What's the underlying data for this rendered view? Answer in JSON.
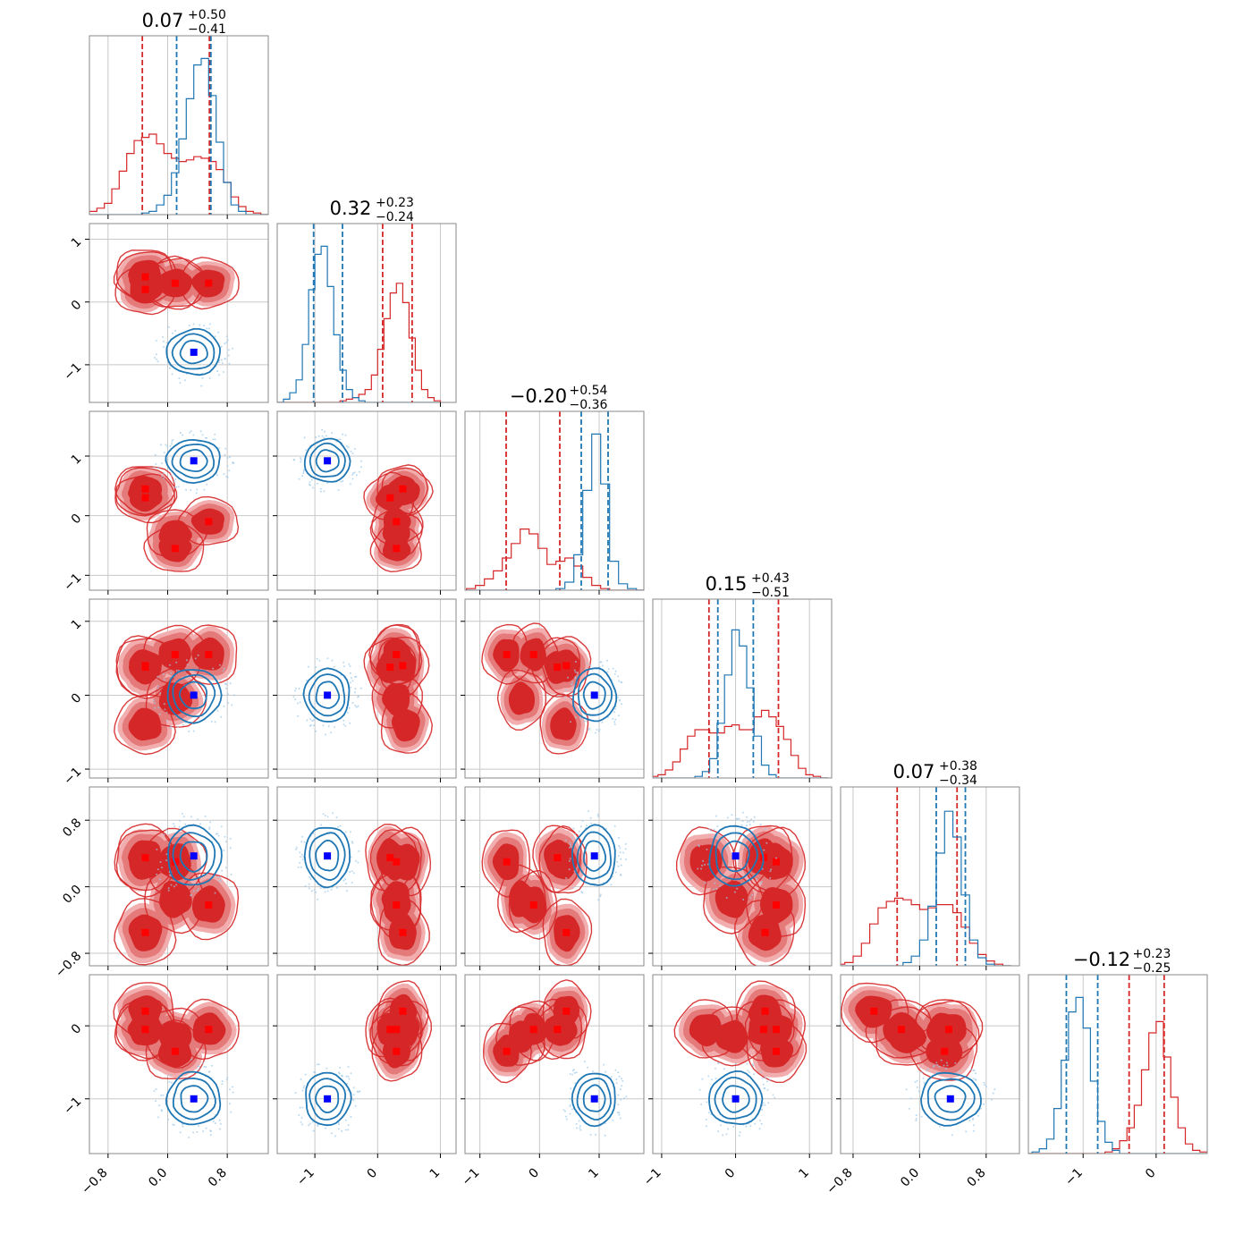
{
  "chart_data": {
    "type": "corner",
    "colors": {
      "red": "#d62728",
      "blue": "#1f77b4",
      "red_marker": "#ff0000",
      "blue_marker": "#0000ff",
      "grid": "#c8c8c8",
      "frame": "#888888"
    },
    "series": [
      {
        "name": "",
        "color": "#d62728",
        "marker": "square"
      },
      {
        "name": "",
        "color": "#1f77b4",
        "marker": "square"
      }
    ],
    "params": [
      {
        "title_value": "0.07",
        "title_plus": "+0.50",
        "title_minus": "−0.41",
        "range": [
          -1.05,
          1.35
        ],
        "ticks": [
          {
            "v": -0.8,
            "label": "−0.8"
          },
          {
            "v": 0.0,
            "label": "0.0"
          },
          {
            "v": 0.8,
            "label": "0.8"
          }
        ],
        "quantiles": {
          "red": [
            -0.34,
            0.56
          ],
          "blue": [
            0.12,
            0.58
          ]
        }
      },
      {
        "title_value": "0.32",
        "title_plus": "+0.23",
        "title_minus": "−0.24",
        "range": [
          -1.6,
          1.25
        ],
        "ticks": [
          {
            "v": -1,
            "label": "−1"
          },
          {
            "v": 0,
            "label": "0"
          },
          {
            "v": 1,
            "label": "1"
          }
        ],
        "quantiles": {
          "red": [
            0.08,
            0.55
          ],
          "blue": [
            -1.02,
            -0.56
          ]
        }
      },
      {
        "title_value": "−0.20",
        "title_plus": "+0.54",
        "title_minus": "−0.36",
        "range": [
          -1.25,
          1.75
        ],
        "ticks": [
          {
            "v": -1,
            "label": "−1"
          },
          {
            "v": 0,
            "label": "0"
          },
          {
            "v": 1,
            "label": "1"
          }
        ],
        "quantiles": {
          "red": [
            -0.56,
            0.34
          ],
          "blue": [
            0.7,
            1.15
          ]
        }
      },
      {
        "title_value": "0.15",
        "title_plus": "+0.43",
        "title_minus": "−0.51",
        "range": [
          -1.12,
          1.3
        ],
        "ticks": [
          {
            "v": -1,
            "label": "−1"
          },
          {
            "v": 0,
            "label": "0"
          },
          {
            "v": 1,
            "label": "1"
          }
        ],
        "quantiles": {
          "red": [
            -0.36,
            0.58
          ],
          "blue": [
            -0.24,
            0.24
          ]
        }
      },
      {
        "title_value": "0.07",
        "title_plus": "+0.38",
        "title_minus": "−0.34",
        "range": [
          -0.95,
          1.2
        ],
        "ticks": [
          {
            "v": -0.8,
            "label": "−0.8"
          },
          {
            "v": 0.0,
            "label": "0.0"
          },
          {
            "v": 0.8,
            "label": "0.8"
          }
        ],
        "quantiles": {
          "red": [
            -0.27,
            0.45
          ],
          "blue": [
            0.2,
            0.55
          ]
        }
      },
      {
        "title_value": "−0.12",
        "title_plus": "+0.23",
        "title_minus": "−0.25",
        "range": [
          -1.75,
          0.7
        ],
        "ticks": [
          {
            "v": -1,
            "label": "−1"
          },
          {
            "v": 0,
            "label": "0"
          }
        ],
        "quantiles": {
          "red": [
            -0.37,
            0.11
          ],
          "blue": [
            -1.23,
            -0.8
          ]
        }
      }
    ],
    "red_modes": [
      [
        -0.3,
        0.4,
        0.45,
        0.4,
        -0.55,
        0.2
      ],
      [
        -0.3,
        0.2,
        0.3,
        0.38,
        0.35,
        -0.05
      ],
      [
        0.1,
        0.3,
        -0.55,
        0.55,
        0.3,
        -0.35
      ],
      [
        0.55,
        0.3,
        -0.1,
        0.55,
        -0.22,
        -0.05
      ],
      [
        -0.3,
        0.45,
        0.4,
        -0.4,
        0.3,
        -0.05
      ],
      [
        0.1,
        0.3,
        -0.3,
        -0.05,
        -0.15,
        -0.15
      ]
    ],
    "blue_mode": [
      0.35,
      -0.8,
      0.92,
      0.0,
      0.37,
      -1.0
    ],
    "histograms": [
      {
        "bins": [
          -1.0,
          -0.9,
          -0.8,
          -0.7,
          -0.6,
          -0.5,
          -0.4,
          -0.3,
          -0.2,
          -0.1,
          0.0,
          0.1,
          0.2,
          0.3,
          0.4,
          0.5,
          0.6,
          0.7,
          0.8,
          0.9,
          1.0,
          1.1,
          1.2,
          1.3
        ],
        "red": [
          0.02,
          0.04,
          0.07,
          0.16,
          0.27,
          0.38,
          0.46,
          0.48,
          0.5,
          0.44,
          0.38,
          0.35,
          0.33,
          0.34,
          0.36,
          0.35,
          0.33,
          0.28,
          0.2,
          0.11,
          0.05,
          0.02,
          0.01,
          0.0
        ],
        "blue": [
          0.0,
          0.0,
          0.0,
          0.0,
          0.0,
          0.0,
          0.0,
          0.01,
          0.02,
          0.06,
          0.12,
          0.26,
          0.47,
          0.72,
          0.93,
          0.97,
          0.74,
          0.45,
          0.2,
          0.06,
          0.02,
          0.0,
          0.0,
          0.0
        ]
      },
      {
        "bins": [
          -1.55,
          -1.45,
          -1.35,
          -1.25,
          -1.15,
          -1.05,
          -0.95,
          -0.85,
          -0.75,
          -0.65,
          -0.55,
          -0.45,
          -0.35,
          -0.25,
          -0.15,
          -0.05,
          0.05,
          0.15,
          0.25,
          0.35,
          0.45,
          0.55,
          0.65,
          0.75,
          0.85,
          0.95
        ],
        "red": [
          0.0,
          0.0,
          0.0,
          0.0,
          0.0,
          0.0,
          0.0,
          0.0,
          0.0,
          0.0,
          0.01,
          0.02,
          0.03,
          0.05,
          0.08,
          0.17,
          0.33,
          0.52,
          0.68,
          0.74,
          0.62,
          0.4,
          0.2,
          0.08,
          0.03,
          0.01
        ],
        "blue": [
          0.0,
          0.02,
          0.06,
          0.14,
          0.36,
          0.7,
          0.92,
          0.97,
          0.72,
          0.42,
          0.2,
          0.08,
          0.03,
          0.01,
          0.0,
          0.0,
          0.0,
          0.0,
          0.0,
          0.0,
          0.0,
          0.0,
          0.0,
          0.0,
          0.0,
          0.0
        ]
      },
      {
        "bins": [
          -1.15,
          -1.0,
          -0.85,
          -0.7,
          -0.55,
          -0.4,
          -0.25,
          -0.1,
          0.05,
          0.2,
          0.35,
          0.5,
          0.65,
          0.8,
          0.95,
          1.1,
          1.25,
          1.4,
          1.55,
          1.7
        ],
        "red": [
          0.01,
          0.03,
          0.07,
          0.12,
          0.2,
          0.29,
          0.38,
          0.35,
          0.26,
          0.16,
          0.18,
          0.2,
          0.15,
          0.08,
          0.03,
          0.01,
          0.0,
          0.0,
          0.0,
          0.0
        ],
        "blue": [
          0.0,
          0.0,
          0.0,
          0.0,
          0.0,
          0.0,
          0.0,
          0.0,
          0.0,
          0.0,
          0.01,
          0.05,
          0.22,
          0.62,
          0.97,
          0.66,
          0.18,
          0.04,
          0.01,
          0.0
        ]
      },
      {
        "bins": [
          -1.1,
          -1.0,
          -0.9,
          -0.8,
          -0.7,
          -0.6,
          -0.5,
          -0.4,
          -0.3,
          -0.2,
          -0.1,
          0.0,
          0.1,
          0.2,
          0.3,
          0.4,
          0.5,
          0.6,
          0.7,
          0.8,
          0.9,
          1.0,
          1.1,
          1.2
        ],
        "red": [
          0.01,
          0.02,
          0.05,
          0.1,
          0.18,
          0.26,
          0.3,
          0.3,
          0.28,
          0.28,
          0.32,
          0.33,
          0.3,
          0.3,
          0.38,
          0.42,
          0.38,
          0.32,
          0.24,
          0.14,
          0.06,
          0.02,
          0.01,
          0.0
        ],
        "blue": [
          0.0,
          0.0,
          0.0,
          0.0,
          0.0,
          0.0,
          0.01,
          0.04,
          0.12,
          0.34,
          0.64,
          0.92,
          0.82,
          0.56,
          0.26,
          0.08,
          0.02,
          0.0,
          0.0,
          0.0,
          0.0,
          0.0,
          0.0,
          0.0
        ]
      },
      {
        "bins": [
          -0.95,
          -0.85,
          -0.75,
          -0.65,
          -0.55,
          -0.45,
          -0.35,
          -0.25,
          -0.15,
          -0.05,
          0.05,
          0.15,
          0.25,
          0.35,
          0.45,
          0.55,
          0.65,
          0.75,
          0.85,
          0.95,
          1.05
        ],
        "red": [
          0.01,
          0.02,
          0.06,
          0.14,
          0.26,
          0.36,
          0.4,
          0.42,
          0.41,
          0.38,
          0.35,
          0.36,
          0.38,
          0.38,
          0.33,
          0.24,
          0.14,
          0.07,
          0.03,
          0.01,
          0.0
        ],
        "blue": [
          0.0,
          0.0,
          0.0,
          0.0,
          0.0,
          0.0,
          0.0,
          0.0,
          0.02,
          0.06,
          0.16,
          0.37,
          0.7,
          0.96,
          0.8,
          0.44,
          0.16,
          0.05,
          0.01,
          0.0,
          0.0
        ]
      },
      {
        "bins": [
          -1.75,
          -1.65,
          -1.55,
          -1.45,
          -1.35,
          -1.25,
          -1.15,
          -1.05,
          -0.95,
          -0.85,
          -0.75,
          -0.65,
          -0.55,
          -0.45,
          -0.35,
          -0.25,
          -0.15,
          -0.05,
          0.05,
          0.15,
          0.25,
          0.35,
          0.45,
          0.55,
          0.65
        ],
        "red": [
          0.0,
          0.0,
          0.0,
          0.0,
          0.0,
          0.0,
          0.0,
          0.0,
          0.0,
          0.0,
          0.0,
          0.01,
          0.03,
          0.08,
          0.16,
          0.3,
          0.52,
          0.75,
          0.82,
          0.6,
          0.35,
          0.16,
          0.06,
          0.02,
          0.01
        ],
        "blue": [
          0.0,
          0.01,
          0.03,
          0.09,
          0.28,
          0.58,
          0.88,
          0.97,
          0.78,
          0.45,
          0.2,
          0.07,
          0.02,
          0.0,
          0.0,
          0.0,
          0.0,
          0.0,
          0.0,
          0.0,
          0.0,
          0.0,
          0.0,
          0.0,
          0.0
        ]
      }
    ]
  }
}
